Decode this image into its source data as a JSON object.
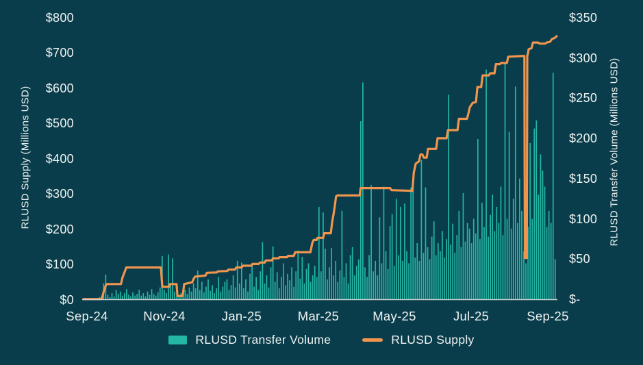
{
  "colors": {
    "background": "#0A3D4B",
    "bar": "#23B7A4",
    "line": "#F0954E",
    "text": "#EEF3F2",
    "axis_line": "#CCD3D4"
  },
  "left_axis": {
    "title": "RLUSD Supply (Millions USD)",
    "ticks": [
      "$800",
      "$700",
      "$600",
      "$500",
      "$400",
      "$300",
      "$200",
      "$100",
      "$0"
    ]
  },
  "right_axis": {
    "title": "RLUSD Transfer Volume (Millions USD)",
    "ticks": [
      "$350",
      "$300",
      "$250",
      "$200",
      "$150",
      "$100",
      "$50",
      "$-"
    ]
  },
  "x_axis": {
    "ticks": [
      {
        "label": "Sep-24",
        "f": 0.0072
      },
      {
        "label": "Nov-24",
        "f": 0.1703
      },
      {
        "label": "Jan-25",
        "f": 0.3333
      },
      {
        "label": "Mar-25",
        "f": 0.4949
      },
      {
        "label": "May-25",
        "f": 0.6551
      },
      {
        "label": "Jul-25",
        "f": 0.8168
      },
      {
        "label": "Sep-25",
        "f": 0.9784
      }
    ]
  },
  "legend": [
    {
      "label": "RLUSD Transfer Volume",
      "type": "bar"
    },
    {
      "label": "RLUSD Supply",
      "type": "line"
    }
  ],
  "chart_data": {
    "type": "combo",
    "x_range": [
      "Sep-24",
      "Sep-25"
    ],
    "left_ylim": [
      0,
      800
    ],
    "right_ylim": [
      0,
      350
    ],
    "left_tick_step": 100,
    "right_tick_step": 50,
    "grid": false,
    "legend_position": "bottom",
    "series": [
      {
        "name": "RLUSD Transfer Volume",
        "type": "bar",
        "axis": "right",
        "unit": "millions USD",
        "values": [
          0.5,
          0.3,
          0.8,
          0.5,
          1,
          2,
          1.5,
          3,
          5,
          20,
          31,
          6,
          3,
          8,
          4,
          12,
          7,
          10,
          5,
          8,
          13,
          6,
          4,
          9,
          5,
          7,
          12,
          5,
          8,
          4,
          10,
          6,
          13,
          7,
          5,
          9,
          15,
          54,
          12,
          8,
          56,
          18,
          51,
          10,
          6,
          4,
          8,
          5,
          12,
          7,
          15,
          10,
          20,
          14,
          36,
          12,
          22,
          9,
          16,
          25,
          11,
          18,
          8,
          14,
          28,
          10,
          16,
          22,
          25,
          12,
          18,
          30,
          15,
          48,
          20,
          46,
          14,
          25,
          10,
          32,
          44,
          16,
          28,
          12,
          35,
          71,
          20,
          30,
          15,
          40,
          66,
          22,
          34,
          14,
          28,
          45,
          18,
          32,
          24,
          40,
          16,
          35,
          61,
          26,
          53,
          20,
          38,
          45,
          22,
          30,
          42,
          28,
          115,
          35,
          108,
          63,
          25,
          40,
          64,
          30,
          48,
          22,
          36,
          110,
          28,
          45,
          20,
          55,
          65,
          30,
          42,
          50,
          221,
          269,
          40,
          28,
          55,
          142,
          35,
          48,
          30,
          102,
          45,
          140,
          60,
          38,
          91,
          106,
          42,
          125,
          55,
          115,
          48,
          119,
          60,
          45,
          139,
          137,
          52,
          70,
          48,
          173,
          58,
          139,
          65,
          50,
          78,
          97,
          55,
          70,
          60,
          85,
          52,
          75,
          254,
          68,
          94,
          58,
          80,
          110,
          65,
          132,
          72,
          95,
          88,
          70,
          100,
          82,
          199,
          75,
          120,
          90,
          285,
          78,
          105,
          130,
          85,
          115,
          95,
          140,
          80,
          293,
          100,
          208,
          88,
          125,
          264,
          95,
          150,
          110,
          60,
          45,
          90,
          194,
          100,
          212,
          222,
          130,
          180,
          160,
          140,
          90,
          110,
          95,
          281,
          50
        ]
      },
      {
        "name": "RLUSD Supply",
        "type": "line",
        "axis": "left",
        "unit": "millions USD",
        "points": [
          [
            0,
            1.5
          ],
          [
            0.0375,
            1.5
          ],
          [
            0.04,
            10
          ],
          [
            0.043,
            25
          ],
          [
            0.048,
            44
          ],
          [
            0.079,
            44
          ],
          [
            0.082,
            62
          ],
          [
            0.087,
            80
          ],
          [
            0.09,
            91
          ],
          [
            0.163,
            91
          ],
          [
            0.166,
            36
          ],
          [
            0.18,
            36
          ],
          [
            0.182,
            44
          ],
          [
            0.196,
            44
          ],
          [
            0.198,
            10
          ],
          [
            0.209,
            10
          ],
          [
            0.212,
            44
          ],
          [
            0.229,
            49
          ],
          [
            0.232,
            59
          ],
          [
            0.235,
            65
          ],
          [
            0.257,
            68
          ],
          [
            0.26,
            76
          ],
          [
            0.281,
            77
          ],
          [
            0.283,
            80
          ],
          [
            0.303,
            81
          ],
          [
            0.305,
            85
          ],
          [
            0.319,
            85
          ],
          [
            0.322,
            91
          ],
          [
            0.333,
            91
          ],
          [
            0.336,
            96
          ],
          [
            0.354,
            96
          ],
          [
            0.356,
            101
          ],
          [
            0.369,
            101
          ],
          [
            0.372,
            105
          ],
          [
            0.382,
            105
          ],
          [
            0.384,
            111
          ],
          [
            0.397,
            111
          ],
          [
            0.399,
            117
          ],
          [
            0.411,
            117
          ],
          [
            0.413,
            120
          ],
          [
            0.429,
            120
          ],
          [
            0.431,
            124
          ],
          [
            0.443,
            124
          ],
          [
            0.446,
            134
          ],
          [
            0.478,
            134
          ],
          [
            0.482,
            160
          ],
          [
            0.485,
            169
          ],
          [
            0.491,
            169
          ],
          [
            0.493,
            175
          ],
          [
            0.505,
            175
          ],
          [
            0.507,
            188
          ],
          [
            0.521,
            188
          ],
          [
            0.524,
            220
          ],
          [
            0.527,
            243
          ],
          [
            0.53,
            270
          ],
          [
            0.532,
            292
          ],
          [
            0.535,
            295
          ],
          [
            0.582,
            295
          ],
          [
            0.584,
            316
          ],
          [
            0.646,
            316
          ],
          [
            0.649,
            310
          ],
          [
            0.672,
            309
          ],
          [
            0.693,
            308
          ],
          [
            0.696,
            360
          ],
          [
            0.7,
            385
          ],
          [
            0.707,
            392
          ],
          [
            0.71,
            411
          ],
          [
            0.714,
            411
          ],
          [
            0.717,
            402
          ],
          [
            0.723,
            402
          ],
          [
            0.726,
            427
          ],
          [
            0.743,
            427
          ],
          [
            0.746,
            457
          ],
          [
            0.765,
            457
          ],
          [
            0.768,
            480
          ],
          [
            0.788,
            480
          ],
          [
            0.791,
            512
          ],
          [
            0.808,
            512
          ],
          [
            0.811,
            527
          ],
          [
            0.814,
            545
          ],
          [
            0.82,
            557
          ],
          [
            0.827,
            560
          ],
          [
            0.83,
            602
          ],
          [
            0.838,
            602
          ],
          [
            0.841,
            635
          ],
          [
            0.854,
            635
          ],
          [
            0.857,
            641
          ],
          [
            0.866,
            641
          ],
          [
            0.869,
            667
          ],
          [
            0.877,
            667
          ],
          [
            0.88,
            670
          ],
          [
            0.892,
            670
          ],
          [
            0.895,
            688
          ],
          [
            0.926,
            690
          ],
          [
            0.929,
            690
          ],
          [
            0.93,
            118
          ],
          [
            0.934,
            118
          ],
          [
            0.935,
            690
          ],
          [
            0.937,
            700
          ],
          [
            0.938,
            709
          ],
          [
            0.944,
            712
          ],
          [
            0.947,
            728
          ],
          [
            0.958,
            728
          ],
          [
            0.961,
            725
          ],
          [
            0.973,
            725
          ],
          [
            0.976,
            728
          ],
          [
            0.983,
            730
          ],
          [
            0.987,
            738
          ],
          [
            0.991,
            740
          ],
          [
            0.994,
            742
          ],
          [
            0.997,
            746
          ]
        ]
      }
    ]
  }
}
